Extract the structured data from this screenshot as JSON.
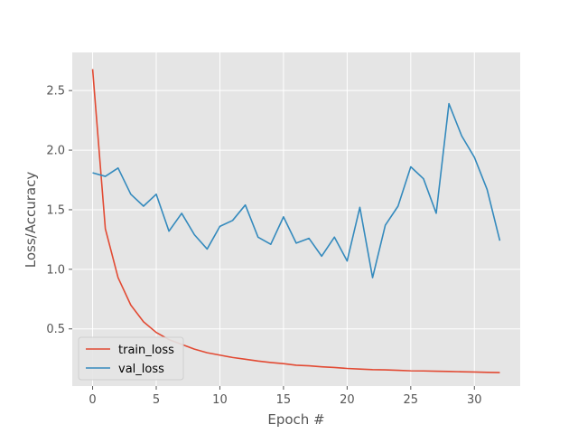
{
  "chart_data": {
    "type": "line",
    "title": "",
    "xlabel": "Epoch #",
    "ylabel": "Loss/Accuracy",
    "xlim": [
      -1.6,
      33.6
    ],
    "ylim": [
      0.02,
      2.82
    ],
    "x_ticks": [
      0,
      5,
      10,
      15,
      20,
      25,
      30
    ],
    "y_ticks": [
      0.5,
      1.0,
      1.5,
      2.0,
      2.5
    ],
    "x_tick_labels": [
      "0",
      "5",
      "10",
      "15",
      "20",
      "25",
      "30"
    ],
    "y_tick_labels": [
      "0.5",
      "1.0",
      "1.5",
      "2.0",
      "2.5"
    ],
    "grid": true,
    "legend_position": "lower-left",
    "x": [
      0,
      1,
      2,
      3,
      4,
      5,
      6,
      7,
      8,
      9,
      10,
      11,
      12,
      13,
      14,
      15,
      16,
      17,
      18,
      19,
      20,
      21,
      22,
      23,
      24,
      25,
      26,
      27,
      28,
      29,
      30,
      31,
      32
    ],
    "series": [
      {
        "name": "train_loss",
        "color": "#e24a33",
        "values": [
          2.68,
          1.34,
          0.93,
          0.7,
          0.56,
          0.47,
          0.41,
          0.37,
          0.33,
          0.3,
          0.28,
          0.26,
          0.245,
          0.23,
          0.218,
          0.208,
          0.195,
          0.19,
          0.182,
          0.176,
          0.168,
          0.163,
          0.158,
          0.156,
          0.152,
          0.148,
          0.147,
          0.145,
          0.143,
          0.14,
          0.138,
          0.135,
          0.133
        ]
      },
      {
        "name": "val_loss",
        "color": "#348abd",
        "values": [
          1.81,
          1.78,
          1.85,
          1.63,
          1.53,
          1.63,
          1.32,
          1.47,
          1.29,
          1.17,
          1.36,
          1.41,
          1.54,
          1.27,
          1.21,
          1.44,
          1.22,
          1.26,
          1.11,
          1.27,
          1.07,
          1.52,
          0.93,
          1.37,
          1.53,
          1.86,
          1.76,
          1.47,
          2.39,
          2.12,
          1.94,
          1.67,
          1.24
        ]
      }
    ]
  }
}
